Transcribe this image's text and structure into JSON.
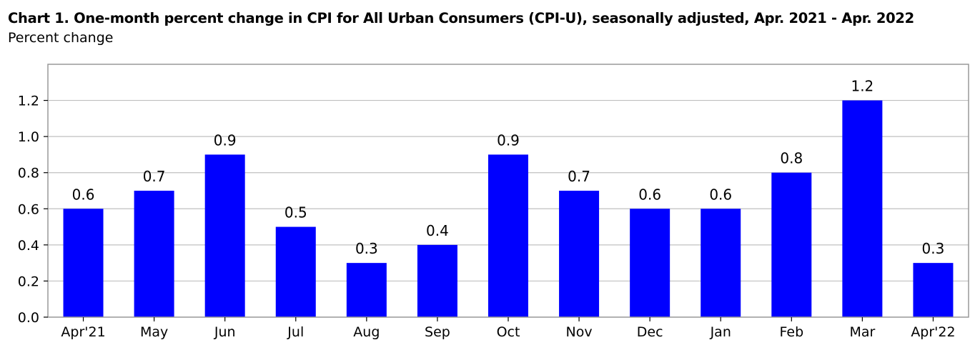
{
  "chart_data": {
    "type": "bar",
    "title": "Chart 1. One-month percent change in CPI for All Urban Consumers (CPI-U), seasonally adjusted, Apr. 2021 - Apr. 2022",
    "subtitle": "Percent change",
    "categories": [
      "Apr'21",
      "May",
      "Jun",
      "Jul",
      "Aug",
      "Sep",
      "Oct",
      "Nov",
      "Dec",
      "Jan",
      "Feb",
      "Mar",
      "Apr'22"
    ],
    "values": [
      0.6,
      0.7,
      0.9,
      0.5,
      0.3,
      0.4,
      0.9,
      0.7,
      0.6,
      0.6,
      0.8,
      1.2,
      0.3
    ],
    "value_labels": [
      "0.6",
      "0.7",
      "0.9",
      "0.5",
      "0.3",
      "0.4",
      "0.9",
      "0.7",
      "0.6",
      "0.6",
      "0.8",
      "1.2",
      "0.3"
    ],
    "yticks": [
      0.0,
      0.2,
      0.4,
      0.6,
      0.8,
      1.0,
      1.2
    ],
    "ytick_labels": [
      "0.0",
      "0.2",
      "0.4",
      "0.6",
      "0.8",
      "1.0",
      "1.2"
    ],
    "ylim": [
      0,
      1.4
    ],
    "xlabel": "",
    "ylabel": "",
    "grid": true,
    "bar_color": "#0000FF",
    "grid_color": "#C0C0C0",
    "axis_color": "#999999"
  }
}
